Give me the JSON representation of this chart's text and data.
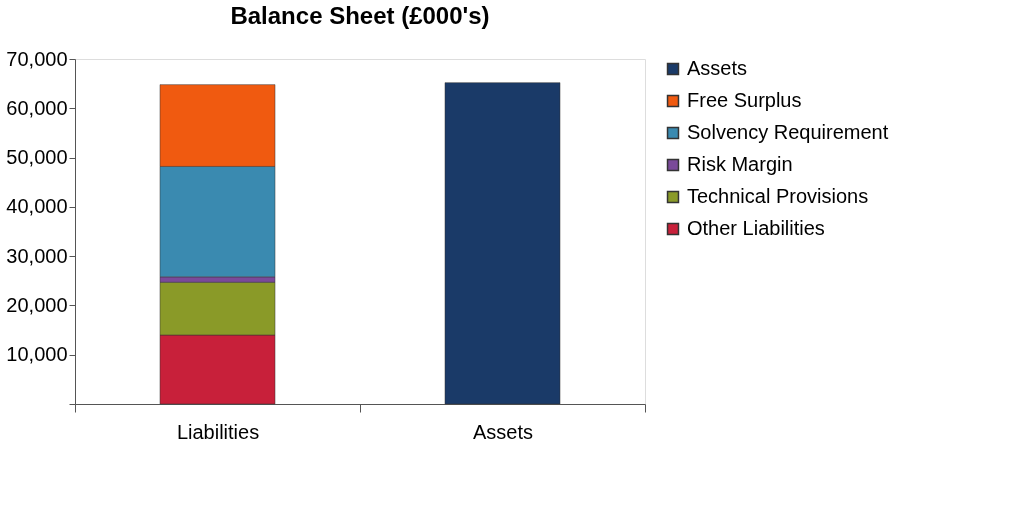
{
  "chart_data": {
    "type": "bar",
    "title": "Balance Sheet (£000's)",
    "stacked": true,
    "categories": [
      "Liabilities",
      "Assets"
    ],
    "series": [
      {
        "name": "Other Liabilities",
        "color": "#c8203a",
        "values": [
          14000,
          null
        ]
      },
      {
        "name": "Technical Provisions",
        "color": "#8a9a28",
        "values": [
          10700,
          null
        ]
      },
      {
        "name": "Risk Margin",
        "color": "#7a4a9a",
        "values": [
          1100,
          null
        ]
      },
      {
        "name": "Solvency Requirement",
        "color": "#3a8ab0",
        "values": [
          22400,
          null
        ]
      },
      {
        "name": "Free Surplus",
        "color": "#f05a10",
        "values": [
          16600,
          null
        ]
      },
      {
        "name": "Assets",
        "color": "#1a3a68",
        "values": [
          null,
          65200
        ]
      }
    ],
    "ylim": [
      0,
      70000
    ],
    "yticks": [
      {
        "value": 0,
        "label": null
      },
      {
        "value": 10000,
        "label": "10,000"
      },
      {
        "value": 20000,
        "label": "20,000"
      },
      {
        "value": 30000,
        "label": "30,000"
      },
      {
        "value": 40000,
        "label": "40,000"
      },
      {
        "value": 50000,
        "label": "50,000"
      },
      {
        "value": 60000,
        "label": "60,000"
      },
      {
        "value": 70000,
        "label": "70,000"
      }
    ],
    "grid": false,
    "legend": "right"
  }
}
